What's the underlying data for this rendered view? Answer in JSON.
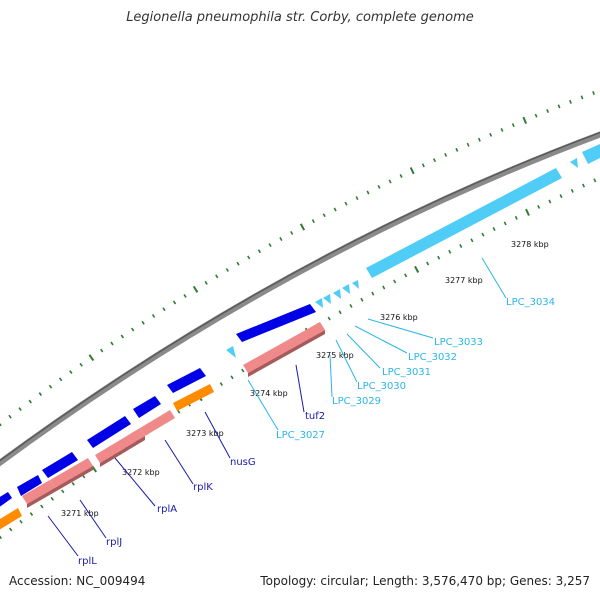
{
  "title": "Legionella pneumophila str. Corby, complete genome",
  "accession": "Accession: NC_009494",
  "topology": "Topology: circular; Length: 3,576,470 bp; Genes: 3,257",
  "colors": {
    "backbone": "#7a7a7a",
    "cds_forward": "#0000e6",
    "cds_reverse": "#4fcdf7",
    "rrna": "#f08a8a",
    "trna": "#ff8c00",
    "tick": "#2e7d32"
  },
  "kbp_labels": [
    "3271 kbp",
    "3272 kbp",
    "3273 kbp",
    "3274 kbp",
    "3275 kbp",
    "3276 kbp",
    "3277 kbp",
    "3278 kbp"
  ],
  "gene_labels": [
    {
      "text": "rplL",
      "color": "#1a1aa8"
    },
    {
      "text": "rplJ",
      "color": "#1a1aa8"
    },
    {
      "text": "rplA",
      "color": "#1a1aa8"
    },
    {
      "text": "rplK",
      "color": "#1a1aa8"
    },
    {
      "text": "nusG",
      "color": "#1a1aa8"
    },
    {
      "text": "tuf2",
      "color": "#1a1aa8"
    },
    {
      "text": "LPC_3027",
      "color": "#2bb5e8"
    },
    {
      "text": "LPC_3029",
      "color": "#2bb5e8"
    },
    {
      "text": "LPC_3030",
      "color": "#2bb5e8"
    },
    {
      "text": "LPC_3031",
      "color": "#2bb5e8"
    },
    {
      "text": "LPC_3032",
      "color": "#2bb5e8"
    },
    {
      "text": "LPC_3033",
      "color": "#2bb5e8"
    },
    {
      "text": "LPC_3034",
      "color": "#2bb5e8"
    }
  ]
}
